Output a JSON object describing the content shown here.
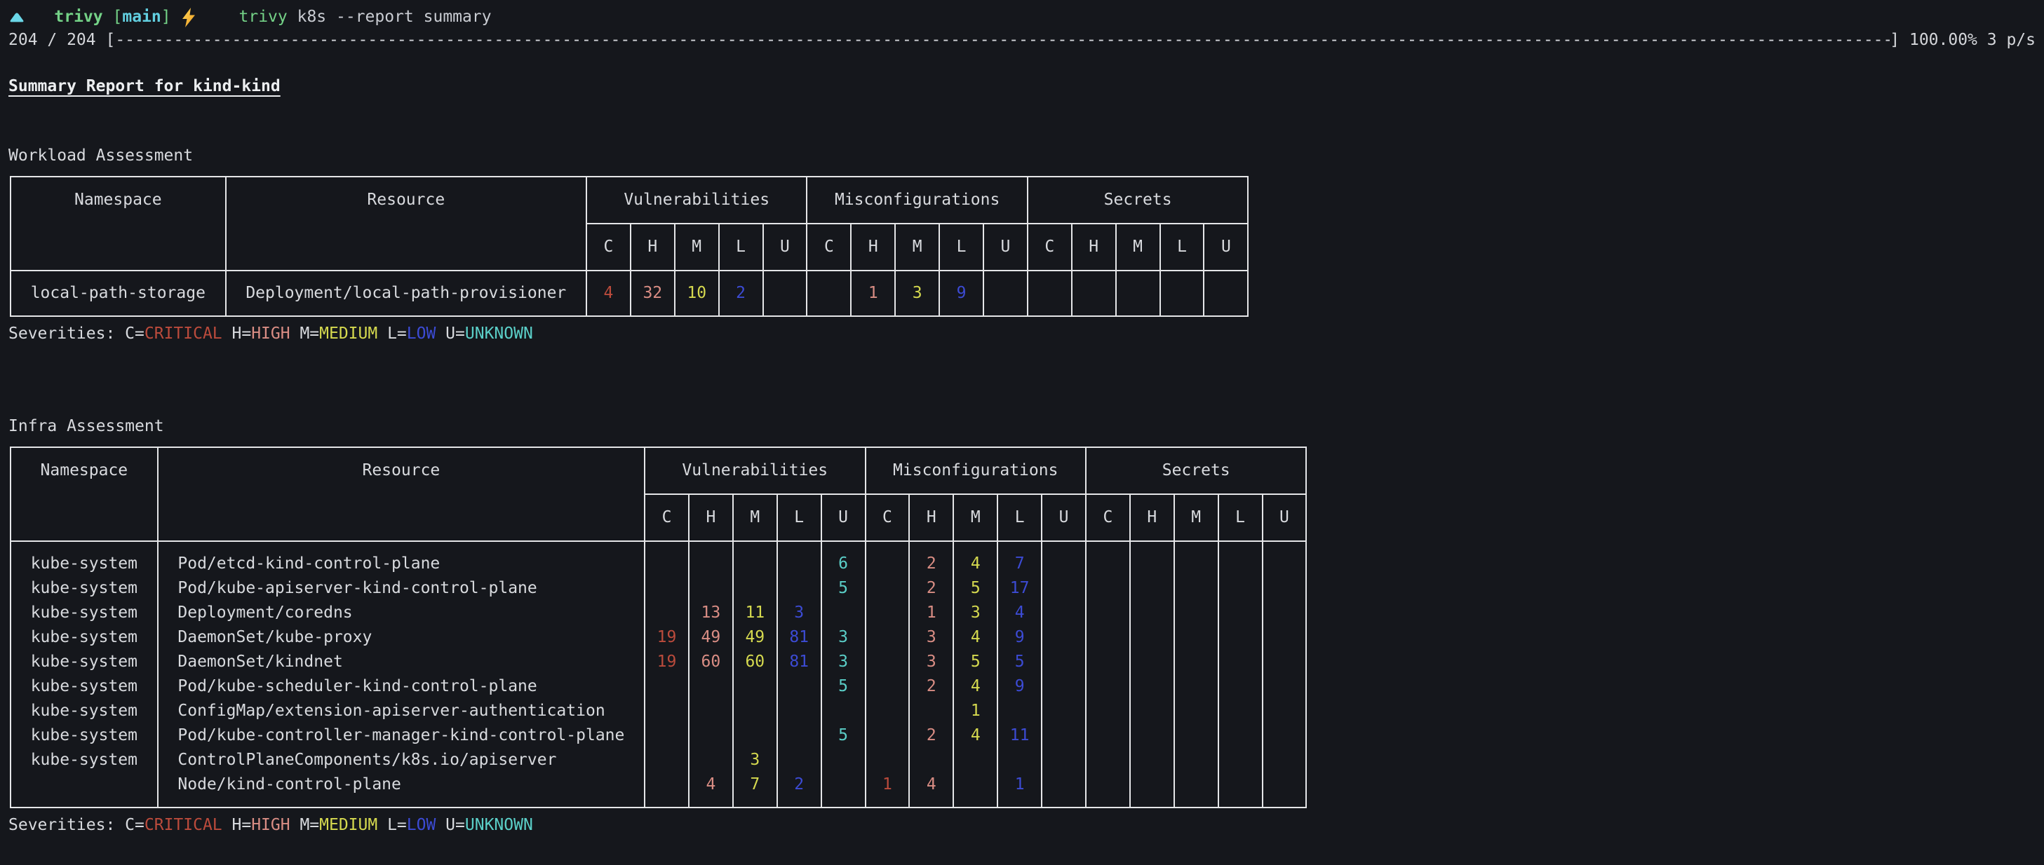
{
  "colors": {
    "background": "#15171c",
    "foreground": "#d8dade",
    "table_border": "#e5e6e8",
    "critical": "#bb4b3c",
    "high": "#d98d84",
    "medium": "#d5d94f",
    "low": "#3c4bd4",
    "unknown": "#5bcfc8",
    "prompt_green": "#74d287",
    "prompt_cyan": "#62cfe0",
    "bolt_yellow": "#f6b73c"
  },
  "prompt": {
    "arrow_icon": "triangle-up-icon",
    "dir": "trivy",
    "bracket_open": "[",
    "branch": "main",
    "bracket_close": "]",
    "bolt_icon": "lightning-bolt-icon",
    "command": "trivy",
    "args": "k8s --report summary"
  },
  "progress": {
    "left": "204 / 204 [",
    "bar": "------------------------------------------------------------------------------------------------------------------------------------------------------------------------------------------------------------------",
    "right": "] 100.00% 3 p/s"
  },
  "title": "Summary Report for kind-kind",
  "sub_headers": [
    "C",
    "H",
    "M",
    "L",
    "U"
  ],
  "legend": {
    "label": "Severities: ",
    "items": [
      {
        "key": "C=",
        "name": "CRITICAL"
      },
      {
        "key": " H=",
        "name": "HIGH"
      },
      {
        "key": " M=",
        "name": "MEDIUM"
      },
      {
        "key": " L=",
        "name": "LOW"
      },
      {
        "key": " U=",
        "name": "UNKNOWN"
      }
    ]
  },
  "workload": {
    "heading": "Workload Assessment",
    "columns": {
      "namespace": "Namespace",
      "resource": "Resource"
    },
    "groups": [
      "Vulnerabilities",
      "Misconfigurations",
      "Secrets"
    ],
    "rows": [
      [
        "local-path-storage",
        "Deployment/local-path-provisioner",
        "4",
        "32",
        "10",
        "2",
        "",
        "",
        "1",
        "3",
        "9",
        "",
        "",
        "",
        "",
        "",
        ""
      ]
    ]
  },
  "infra": {
    "heading": "Infra Assessment",
    "columns": {
      "namespace": "Namespace",
      "resource": "Resource"
    },
    "groups": [
      "Vulnerabilities",
      "Misconfigurations",
      "Secrets"
    ],
    "rows": [
      [
        "kube-system",
        "Pod/etcd-kind-control-plane",
        "",
        "",
        "",
        "",
        "6",
        "",
        "2",
        "4",
        "7",
        "",
        "",
        "",
        "",
        "",
        ""
      ],
      [
        "kube-system",
        "Pod/kube-apiserver-kind-control-plane",
        "",
        "",
        "",
        "",
        "5",
        "",
        "2",
        "5",
        "17",
        "",
        "",
        "",
        "",
        "",
        ""
      ],
      [
        "kube-system",
        "Deployment/coredns",
        "",
        "13",
        "11",
        "3",
        "",
        "",
        "1",
        "3",
        "4",
        "",
        "",
        "",
        "",
        "",
        ""
      ],
      [
        "kube-system",
        "DaemonSet/kube-proxy",
        "19",
        "49",
        "49",
        "81",
        "3",
        "",
        "3",
        "4",
        "9",
        "",
        "",
        "",
        "",
        "",
        ""
      ],
      [
        "kube-system",
        "DaemonSet/kindnet",
        "19",
        "60",
        "60",
        "81",
        "3",
        "",
        "3",
        "5",
        "5",
        "",
        "",
        "",
        "",
        "",
        ""
      ],
      [
        "kube-system",
        "Pod/kube-scheduler-kind-control-plane",
        "",
        "",
        "",
        "",
        "5",
        "",
        "2",
        "4",
        "9",
        "",
        "",
        "",
        "",
        "",
        ""
      ],
      [
        "kube-system",
        "ConfigMap/extension-apiserver-authentication",
        "",
        "",
        "",
        "",
        "",
        "",
        "",
        "1",
        "",
        "",
        "",
        "",
        "",
        "",
        ""
      ],
      [
        "kube-system",
        "Pod/kube-controller-manager-kind-control-plane",
        "",
        "",
        "",
        "",
        "5",
        "",
        "2",
        "4",
        "11",
        "",
        "",
        "",
        "",
        "",
        ""
      ],
      [
        "kube-system",
        "ControlPlaneComponents/k8s.io/apiserver",
        "",
        "",
        "3",
        "",
        "",
        "",
        "",
        "",
        "",
        "",
        "",
        "",
        "",
        "",
        ""
      ],
      [
        "",
        "Node/kind-control-plane",
        "",
        "4",
        "7",
        "2",
        "",
        "1",
        "4",
        "",
        "1",
        "",
        "",
        "",
        "",
        "",
        ""
      ]
    ]
  }
}
